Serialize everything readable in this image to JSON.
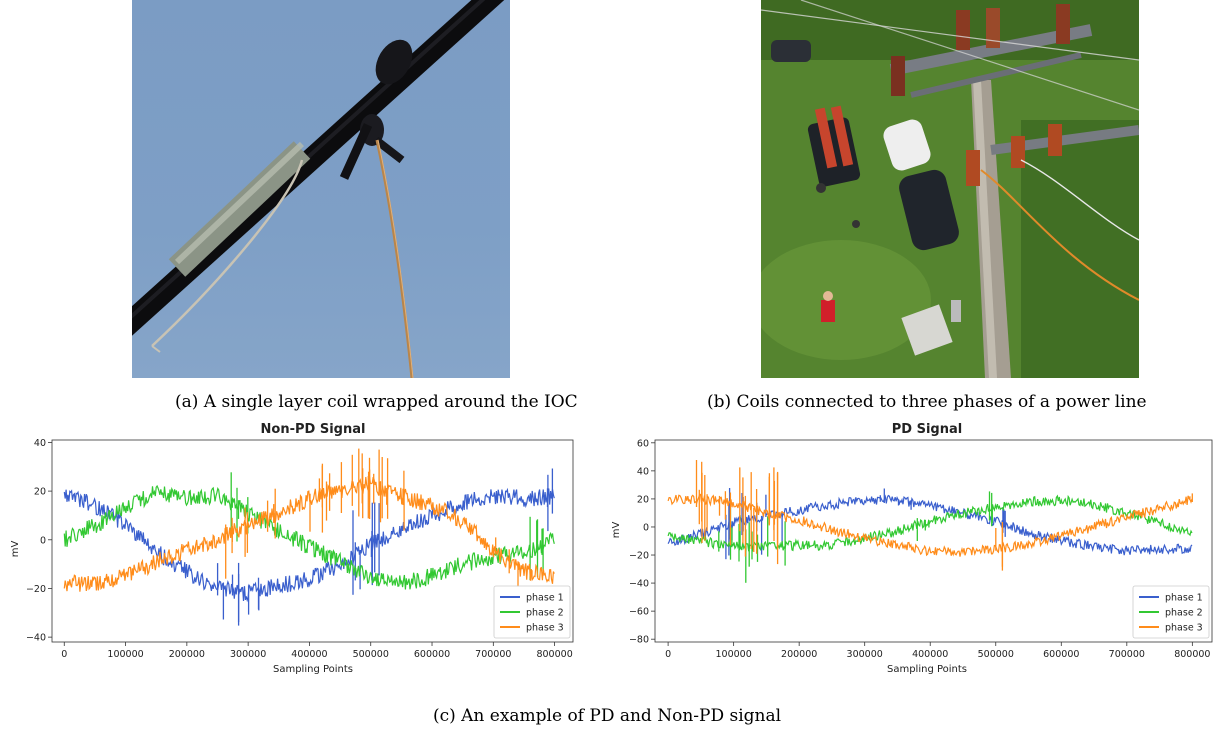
{
  "captions": {
    "a": "(a) A single layer coil wrapped around the IOC",
    "b": "(b) Coils connected to three phases of a power line",
    "c": "(c) An example of PD and Non-PD signal"
  },
  "colors": {
    "phase1": "#3a5fcd",
    "phase2": "#32c832",
    "phase3": "#ff8c1a"
  },
  "chart_data": [
    {
      "type": "line",
      "title": "Non-PD Signal",
      "xlabel": "Sampling Points",
      "ylabel": "mV",
      "xlim": [
        -20000,
        830000
      ],
      "ylim": [
        -42,
        41
      ],
      "xticks": [
        0,
        100000,
        200000,
        300000,
        400000,
        500000,
        600000,
        700000,
        800000
      ],
      "yticks": [
        -40,
        -20,
        0,
        20,
        40
      ],
      "legend": "lower-right",
      "grid": false,
      "x": [
        0,
        50000,
        100000,
        150000,
        200000,
        250000,
        300000,
        350000,
        400000,
        450000,
        500000,
        550000,
        600000,
        650000,
        700000,
        750000,
        800000
      ],
      "series": [
        {
          "name": "phase 1",
          "values": [
            19,
            14,
            6,
            -5,
            -13,
            -20,
            -22,
            -19,
            -16,
            -10,
            -2,
            5,
            10,
            15,
            18,
            17,
            18
          ]
        },
        {
          "name": "phase 2",
          "values": [
            0,
            6,
            13,
            20,
            17,
            18,
            11,
            4,
            -3,
            -9,
            -15,
            -18,
            -15,
            -10,
            -7,
            -5,
            0
          ]
        },
        {
          "name": "phase 3",
          "values": [
            -18,
            -18,
            -15,
            -9,
            -4,
            0,
            6,
            11,
            17,
            20,
            23,
            18,
            14,
            8,
            -5,
            -13,
            -15
          ]
        }
      ]
    },
    {
      "type": "line",
      "title": "PD Signal",
      "xlabel": "Sampling Points",
      "ylabel": "mV",
      "xlim": [
        -20000,
        830000
      ],
      "ylim": [
        -82,
        62
      ],
      "xticks": [
        0,
        100000,
        200000,
        300000,
        400000,
        500000,
        600000,
        700000,
        800000
      ],
      "yticks": [
        -80,
        -60,
        -40,
        -20,
        0,
        20,
        40,
        60
      ],
      "legend": "lower-right",
      "grid": false,
      "x": [
        0,
        50000,
        100000,
        150000,
        200000,
        250000,
        300000,
        350000,
        400000,
        450000,
        500000,
        550000,
        600000,
        650000,
        700000,
        750000,
        800000
      ],
      "series": [
        {
          "name": "phase 1",
          "values": [
            -12,
            -5,
            3,
            8,
            12,
            16,
            19,
            19,
            15,
            10,
            4,
            -4,
            -10,
            -14,
            -17,
            -16,
            -15
          ]
        },
        {
          "name": "phase 2",
          "values": [
            -6,
            -10,
            -14,
            -14,
            -13,
            -13,
            -8,
            -3,
            4,
            10,
            14,
            18,
            19,
            16,
            10,
            3,
            -5
          ]
        },
        {
          "name": "phase 3",
          "values": [
            19,
            20,
            17,
            10,
            5,
            -2,
            -8,
            -13,
            -17,
            -18,
            -16,
            -12,
            -6,
            0,
            7,
            13,
            20
          ]
        }
      ]
    }
  ]
}
